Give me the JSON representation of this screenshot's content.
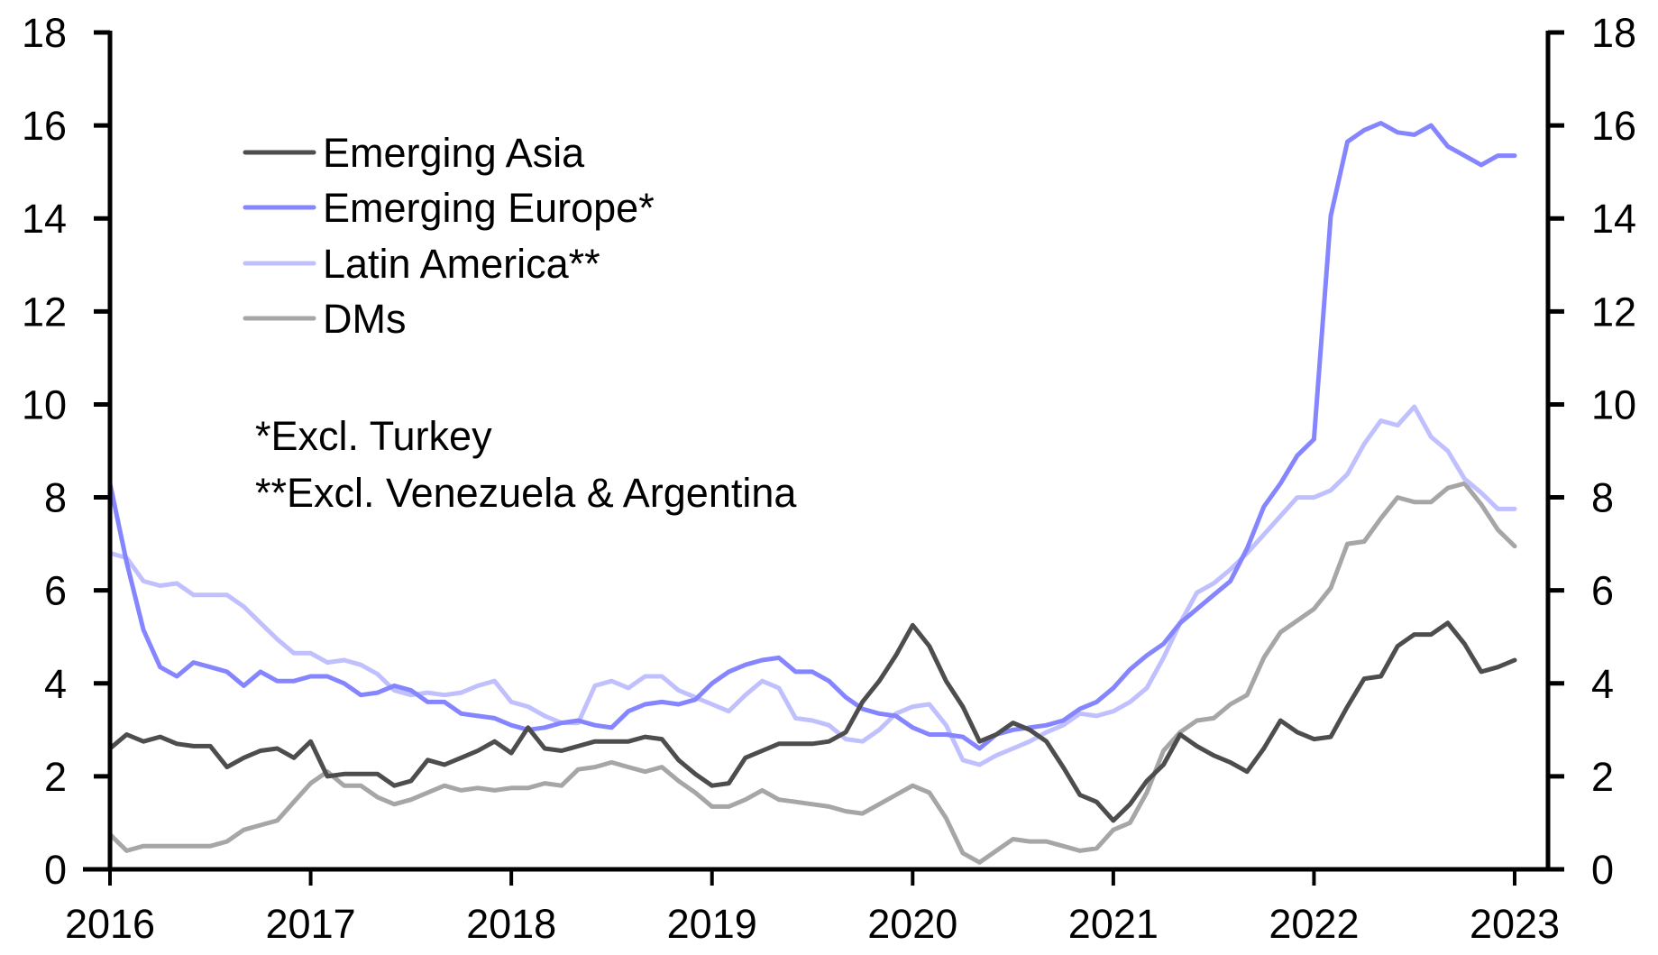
{
  "chart_data": {
    "type": "line",
    "title": "",
    "xlabel": "",
    "ylabel": "",
    "ylim": [
      0,
      18
    ],
    "y_ticks": [
      "0",
      "2",
      "4",
      "6",
      "8",
      "10",
      "12",
      "14",
      "16",
      "18"
    ],
    "y_ticks_right": [
      "0",
      "2",
      "4",
      "6",
      "8",
      "10",
      "12",
      "14",
      "16",
      "18"
    ],
    "x_ticks": [
      "2016",
      "2017",
      "2018",
      "2019",
      "2020",
      "2021",
      "2022",
      "2023"
    ],
    "x_range": [
      "2016-01",
      "2023-01"
    ],
    "frequency": "monthly",
    "grid": false,
    "legend_position": "top-left",
    "annotations": [
      "*Excl. Turkey",
      "**Excl. Venezuela & Argentina"
    ],
    "series": [
      {
        "name": "Emerging Asia",
        "color": "#4d4d4d",
        "values": [
          2.6,
          2.9,
          2.75,
          2.85,
          2.7,
          2.65,
          2.65,
          2.2,
          2.4,
          2.55,
          2.6,
          2.4,
          2.75,
          2.0,
          2.05,
          2.05,
          2.05,
          1.8,
          1.9,
          2.35,
          2.25,
          2.4,
          2.55,
          2.75,
          2.5,
          3.05,
          2.6,
          2.55,
          2.65,
          2.75,
          2.75,
          2.75,
          2.85,
          2.8,
          2.35,
          2.05,
          1.8,
          1.85,
          2.4,
          2.55,
          2.7,
          2.7,
          2.7,
          2.75,
          2.95,
          3.6,
          4.05,
          4.6,
          5.25,
          4.8,
          4.05,
          3.5,
          2.75,
          2.9,
          3.15,
          3.0,
          2.75,
          2.2,
          1.6,
          1.45,
          1.05,
          1.4,
          1.9,
          2.25,
          2.9,
          2.65,
          2.45,
          2.3,
          2.1,
          2.6,
          3.2,
          2.95,
          2.8,
          2.85,
          3.5,
          4.1,
          4.15,
          4.8,
          5.05,
          5.05,
          5.3,
          4.85,
          4.25,
          4.35,
          4.5
        ]
      },
      {
        "name": "Emerging Europe*",
        "color": "#8585ff",
        "values": [
          8.3,
          6.6,
          5.15,
          4.35,
          4.15,
          4.45,
          4.35,
          4.25,
          3.95,
          4.25,
          4.05,
          4.05,
          4.15,
          4.15,
          4.0,
          3.75,
          3.8,
          3.95,
          3.85,
          3.6,
          3.6,
          3.35,
          3.3,
          3.25,
          3.1,
          3.0,
          3.05,
          3.15,
          3.2,
          3.1,
          3.05,
          3.4,
          3.55,
          3.6,
          3.55,
          3.65,
          4.0,
          4.25,
          4.4,
          4.5,
          4.55,
          4.25,
          4.25,
          4.05,
          3.7,
          3.45,
          3.35,
          3.3,
          3.05,
          2.9,
          2.9,
          2.85,
          2.6,
          2.9,
          3.0,
          3.05,
          3.1,
          3.2,
          3.45,
          3.6,
          3.9,
          4.3,
          4.6,
          4.85,
          5.3,
          5.6,
          5.9,
          6.2,
          6.9,
          7.8,
          8.3,
          8.9,
          9.25,
          14.05,
          15.65,
          15.9,
          16.05,
          15.85,
          15.8,
          16.0,
          15.55,
          15.35,
          15.15,
          15.35,
          15.35
        ]
      },
      {
        "name": "Latin America**",
        "color": "#c0c0ff",
        "values": [
          6.8,
          6.7,
          6.2,
          6.1,
          6.15,
          5.9,
          5.9,
          5.9,
          5.65,
          5.3,
          4.95,
          4.65,
          4.65,
          4.45,
          4.5,
          4.4,
          4.2,
          3.85,
          3.75,
          3.8,
          3.75,
          3.8,
          3.95,
          4.05,
          3.6,
          3.5,
          3.3,
          3.15,
          3.15,
          3.95,
          4.05,
          3.9,
          4.15,
          4.15,
          3.85,
          3.7,
          3.55,
          3.4,
          3.75,
          4.05,
          3.9,
          3.25,
          3.2,
          3.1,
          2.8,
          2.75,
          3.0,
          3.35,
          3.5,
          3.55,
          3.1,
          2.35,
          2.25,
          2.45,
          2.6,
          2.75,
          2.95,
          3.1,
          3.35,
          3.3,
          3.4,
          3.6,
          3.9,
          4.55,
          5.3,
          5.95,
          6.15,
          6.45,
          6.8,
          7.2,
          7.6,
          8.0,
          8.0,
          8.15,
          8.5,
          9.15,
          9.65,
          9.55,
          9.95,
          9.3,
          9.0,
          8.4,
          8.1,
          7.75,
          7.75
        ]
      },
      {
        "name": "DMs",
        "color": "#a6a6a6",
        "values": [
          0.75,
          0.4,
          0.5,
          0.5,
          0.5,
          0.5,
          0.5,
          0.6,
          0.85,
          0.95,
          1.05,
          1.45,
          1.85,
          2.1,
          1.8,
          1.8,
          1.55,
          1.4,
          1.5,
          1.65,
          1.8,
          1.7,
          1.75,
          1.7,
          1.75,
          1.75,
          1.85,
          1.8,
          2.15,
          2.2,
          2.3,
          2.2,
          2.1,
          2.2,
          1.9,
          1.65,
          1.35,
          1.35,
          1.5,
          1.7,
          1.5,
          1.45,
          1.4,
          1.35,
          1.25,
          1.2,
          1.4,
          1.6,
          1.8,
          1.65,
          1.1,
          0.35,
          0.15,
          0.4,
          0.65,
          0.6,
          0.6,
          0.5,
          0.4,
          0.45,
          0.85,
          1.0,
          1.65,
          2.55,
          2.95,
          3.2,
          3.25,
          3.55,
          3.75,
          4.55,
          5.1,
          5.35,
          5.6,
          6.05,
          7.0,
          7.05,
          7.55,
          8.0,
          7.9,
          7.9,
          8.2,
          8.3,
          7.85,
          7.3,
          6.95
        ]
      }
    ]
  },
  "legend": {
    "items": [
      {
        "label": "Emerging Asia",
        "color": "#4d4d4d"
      },
      {
        "label": "Emerging Europe*",
        "color": "#8585ff"
      },
      {
        "label": "Latin America**",
        "color": "#c0c0ff"
      },
      {
        "label": "DMs",
        "color": "#a6a6a6"
      }
    ]
  },
  "notes": [
    "*Excl. Turkey",
    "**Excl. Venezuela & Argentina"
  ]
}
